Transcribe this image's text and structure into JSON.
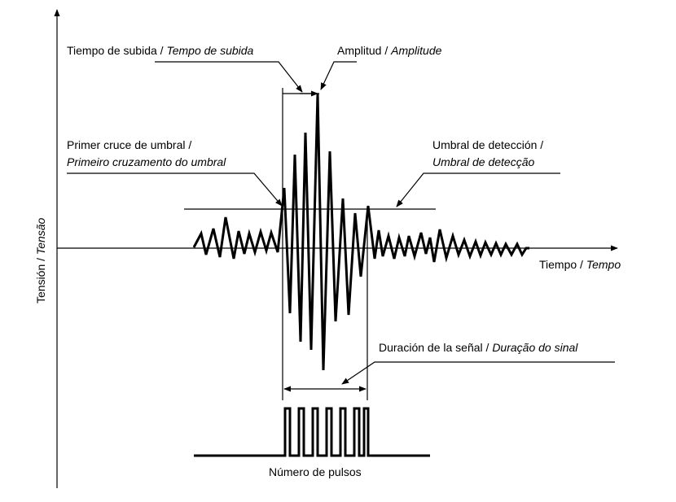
{
  "labels": {
    "rise_time": {
      "es": "Tiempo de subida",
      "sep": " / ",
      "pt": "Tempo de subida"
    },
    "amplitude": {
      "es": "Amplitud",
      "sep": " / ",
      "pt": "Amplitude"
    },
    "first_crossing": {
      "es": "Primer cruce de umbral /",
      "pt": "Primeiro cruzamento do umbral"
    },
    "detection_threshold": {
      "es": "Umbral de detección /",
      "pt": "Umbral de detecção"
    },
    "time_axis": {
      "es": "Tiempo",
      "sep": " / ",
      "pt": "Tempo"
    },
    "voltage_axis": {
      "es": "Tensión",
      "sep": " / ",
      "pt": "Tensão"
    },
    "signal_duration": {
      "es": "Duración de la señal",
      "sep": " / ",
      "pt": "Duração do sinal"
    },
    "pulse_count": "Número de pulsos"
  },
  "pulse_count_value": 6,
  "colors": {
    "ink": "#000000",
    "background": "#ffffff"
  }
}
